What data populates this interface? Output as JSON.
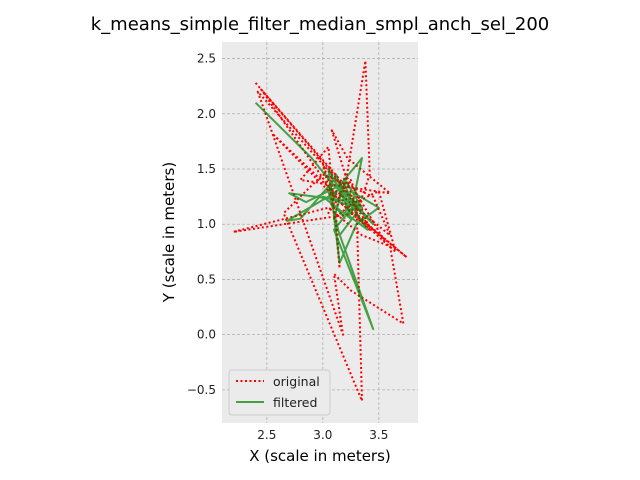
{
  "chart_data": {
    "type": "line",
    "title": "k_means_simple_filter_median_smpl_anch_sel_200",
    "xlabel": "X (scale in meters)",
    "ylabel": "Y (scale in meters)",
    "xlim": [
      2.1,
      3.85
    ],
    "ylim": [
      -0.8,
      2.65
    ],
    "xticks": [
      2.5,
      3.0,
      3.5
    ],
    "xtick_labels": [
      "2.5",
      "3.0",
      "3.5"
    ],
    "yticks": [
      -0.5,
      0.0,
      0.5,
      1.0,
      1.5,
      2.0,
      2.5
    ],
    "ytick_labels": [
      "−0.5",
      "0.0",
      "0.5",
      "1.0",
      "1.5",
      "2.0",
      "2.5"
    ],
    "grid": true,
    "legend_position": "lower-left",
    "series": [
      {
        "name": "original",
        "color": "#ff0000",
        "style": "dotted",
        "x": [
          2.4,
          3.1,
          3.4,
          3.75,
          3.45,
          3.15,
          2.45,
          3.2,
          3.38,
          3.42,
          3.3,
          2.2,
          3.05,
          3.35,
          3.6,
          3.72,
          3.25,
          3.1,
          3.18,
          2.42,
          3.3,
          3.5,
          3.65,
          3.32,
          3.08,
          3.22,
          3.6,
          2.8,
          3.05,
          3.15,
          3.12,
          3.0,
          3.1,
          2.55,
          3.4,
          3.55,
          3.2,
          3.1,
          3.3,
          3.35,
          2.65,
          3.0,
          3.45,
          3.6,
          3.12,
          3.05,
          3.25,
          3.42,
          3.15
        ],
        "y": [
          2.28,
          1.45,
          1.0,
          0.7,
          0.95,
          1.2,
          2.22,
          1.35,
          2.48,
          1.45,
          1.1,
          0.93,
          1.15,
          0.9,
          0.8,
          0.1,
          0.4,
          0.55,
          0.0,
          2.2,
          1.2,
          1.3,
          0.75,
          1.05,
          1.85,
          1.6,
          1.28,
          1.4,
          1.7,
          0.6,
          1.05,
          1.55,
          1.25,
          1.82,
          1.0,
          0.85,
          1.45,
          1.05,
          1.22,
          -0.6,
          1.1,
          1.45,
          1.25,
          0.9,
          1.3,
          1.1,
          1.4,
          0.95,
          1.2
        ]
      },
      {
        "name": "filtered",
        "color": "#008000",
        "style": "solid",
        "x": [
          2.4,
          2.9,
          3.1,
          3.35,
          3.2,
          3.1,
          3.45,
          3.1,
          3.3,
          2.7,
          2.85,
          3.15,
          3.35,
          3.25,
          3.05,
          3.15,
          3.3,
          3.5,
          3.25,
          3.2,
          3.4,
          3.1,
          2.8,
          2.68,
          3.05,
          3.2,
          3.3,
          3.15,
          3.05,
          3.12,
          3.25,
          3.0,
          3.3,
          3.45,
          3.15,
          3.08,
          3.2
        ],
        "y": [
          2.1,
          1.6,
          1.35,
          1.15,
          1.4,
          1.05,
          0.05,
          0.95,
          1.2,
          1.28,
          1.2,
          1.35,
          1.6,
          1.1,
          1.5,
          0.65,
          1.0,
          1.15,
          1.3,
          1.1,
          0.95,
          1.4,
          1.05,
          1.03,
          1.25,
          1.35,
          1.1,
          0.9,
          1.3,
          1.45,
          1.05,
          1.25,
          1.15,
          1.0,
          1.35,
          1.2,
          1.05
        ]
      }
    ]
  }
}
